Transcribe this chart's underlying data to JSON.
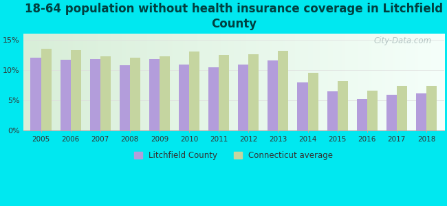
{
  "title": "18-64 population without health insurance coverage in Litchfield\nCounty",
  "years": [
    2005,
    2006,
    2007,
    2008,
    2009,
    2010,
    2011,
    2012,
    2013,
    2014,
    2015,
    2016,
    2017,
    2018
  ],
  "litchfield": [
    12.0,
    11.7,
    11.8,
    10.8,
    11.8,
    10.9,
    10.4,
    10.9,
    11.6,
    7.9,
    6.5,
    5.2,
    5.9,
    6.1
  ],
  "connecticut": [
    13.5,
    13.2,
    12.2,
    12.0,
    12.2,
    13.0,
    12.4,
    12.6,
    13.1,
    9.5,
    8.1,
    6.6,
    7.4,
    7.4
  ],
  "litchfield_color": "#b39ddb",
  "connecticut_color": "#c5d5a0",
  "background_color": "#00e8f0",
  "plot_bg_left": "#d8eed8",
  "plot_bg_right": "#f5fffa",
  "title_color": "#004040",
  "ylim": [
    0,
    16
  ],
  "yticks": [
    0,
    5,
    10,
    15
  ],
  "ytick_labels": [
    "0%",
    "5%",
    "10%",
    "15%"
  ],
  "title_fontsize": 12,
  "bar_width": 0.35,
  "watermark": "City-Data.com"
}
